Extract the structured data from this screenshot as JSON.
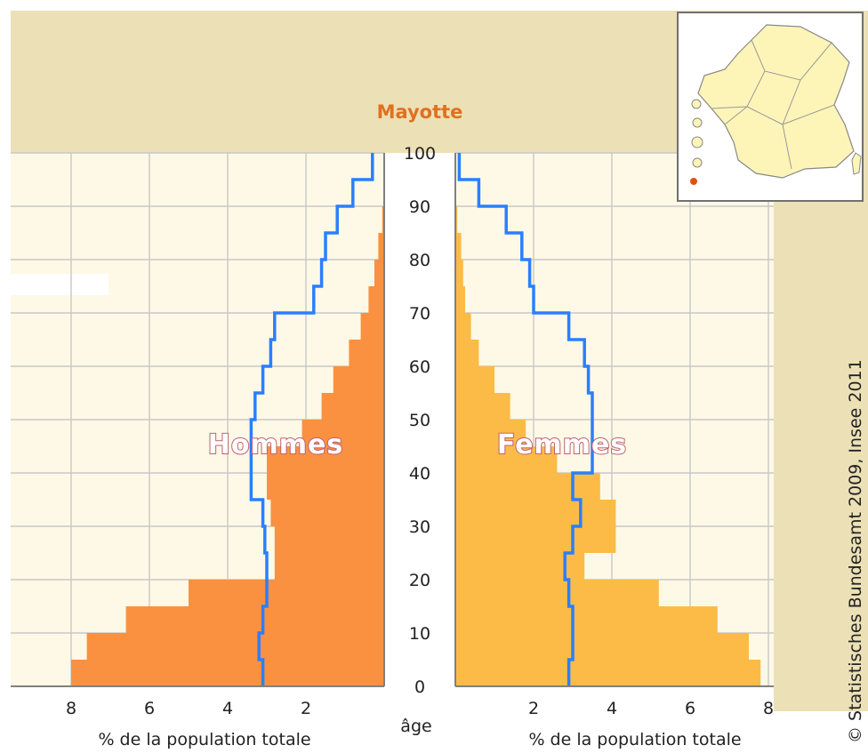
{
  "chart_data": {
    "type": "bar",
    "title": "Mayotte",
    "y_label": "âge",
    "x_label": "% de la population totale",
    "age_ticks": [
      0,
      10,
      20,
      30,
      40,
      50,
      60,
      70,
      80,
      90,
      100
    ],
    "left_ticks": [
      8,
      6,
      4,
      2
    ],
    "right_ticks": [
      2,
      4,
      6,
      8
    ],
    "xlim": [
      0,
      8.5
    ],
    "ylim": [
      0,
      100
    ],
    "age_bands": [
      [
        0,
        5
      ],
      [
        5,
        10
      ],
      [
        10,
        15
      ],
      [
        15,
        20
      ],
      [
        20,
        25
      ],
      [
        25,
        30
      ],
      [
        30,
        35
      ],
      [
        35,
        40
      ],
      [
        40,
        45
      ],
      [
        45,
        50
      ],
      [
        50,
        55
      ],
      [
        55,
        60
      ],
      [
        60,
        65
      ],
      [
        65,
        70
      ],
      [
        70,
        75
      ],
      [
        75,
        80
      ],
      [
        80,
        85
      ],
      [
        85,
        90
      ],
      [
        90,
        95
      ],
      [
        95,
        100
      ]
    ],
    "series": [
      {
        "name": "Hommes",
        "color": "#fa9140",
        "values": [
          8.0,
          7.6,
          6.6,
          5.0,
          2.8,
          2.8,
          2.9,
          3.0,
          3.0,
          2.1,
          1.6,
          1.3,
          0.9,
          0.6,
          0.4,
          0.25,
          0.15,
          0.05,
          0.02,
          0.01
        ]
      },
      {
        "name": "Femmes",
        "color": "#fcbb46",
        "values": [
          7.8,
          7.5,
          6.7,
          5.2,
          3.3,
          4.1,
          4.1,
          3.7,
          2.6,
          1.8,
          1.4,
          1.0,
          0.6,
          0.4,
          0.25,
          0.2,
          0.15,
          0.05,
          0.02,
          0.01
        ]
      },
      {
        "name": "Hommes_reference",
        "color": "#2a7fff",
        "values": [
          3.1,
          3.2,
          3.1,
          3.0,
          3.0,
          3.05,
          3.1,
          3.4,
          3.4,
          3.4,
          3.3,
          3.1,
          2.9,
          2.8,
          1.8,
          1.6,
          1.5,
          1.2,
          0.8,
          0.3
        ]
      },
      {
        "name": "Femmes_reference",
        "color": "#2a7fff",
        "values": [
          2.9,
          3.0,
          3.0,
          2.9,
          2.8,
          3.0,
          3.2,
          3.0,
          3.5,
          3.5,
          3.5,
          3.4,
          3.3,
          2.9,
          2.0,
          1.9,
          1.7,
          1.3,
          0.6,
          0.1
        ]
      }
    ]
  },
  "labels": {
    "hommes": "Hommes",
    "femmes": "Femmes",
    "credit": "© Statistisches Bundesamt 2009, Insee 2011"
  },
  "colors": {
    "plot_bg": "#fdf9e6",
    "frame_bg": "#ece0b6",
    "grid": "#c8c8c8",
    "axis": "#808080",
    "map_fill": "#fdf5b8",
    "map_highlight": "#e05010"
  }
}
